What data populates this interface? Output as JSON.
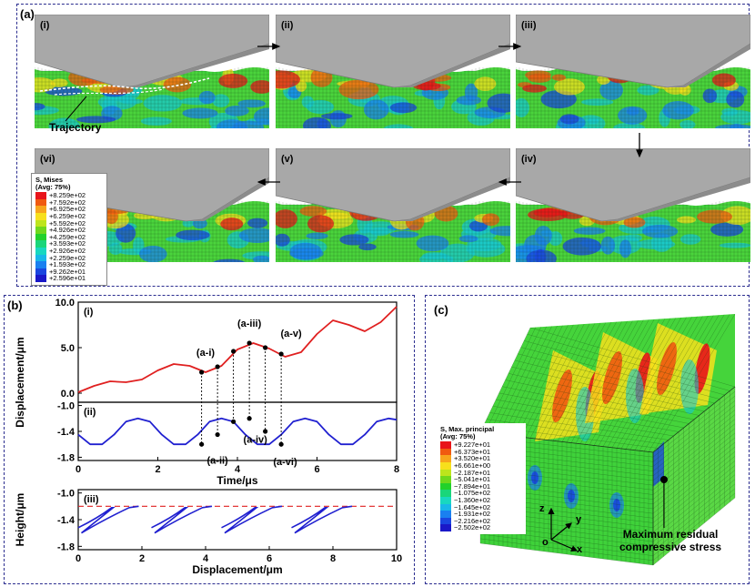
{
  "panel_a": {
    "label": "(a)",
    "frames": [
      {
        "id": "i",
        "label": "(i)"
      },
      {
        "id": "ii",
        "label": "(ii)"
      },
      {
        "id": "iii",
        "label": "(iii)"
      },
      {
        "id": "iv",
        "label": "(iv)"
      },
      {
        "id": "v",
        "label": "(v)"
      },
      {
        "id": "vi",
        "label": "(vi)"
      }
    ],
    "trajectory_label": "Trajectory",
    "legend": {
      "title1": "S, Mises",
      "title2": "(Avg: 75%)",
      "values": [
        "+8.259e+02",
        "+7.592e+02",
        "+6.925e+02",
        "+6.259e+02",
        "+5.592e+02",
        "+4.926e+02",
        "+4.259e+02",
        "+3.593e+02",
        "+2.926e+02",
        "+2.259e+02",
        "+1.593e+02",
        "+9.262e+01",
        "+2.596e+01"
      ],
      "colors": [
        "#e8141a",
        "#f05a10",
        "#f7a51c",
        "#f7e01c",
        "#bde51c",
        "#6fd81c",
        "#22d12a",
        "#1ad67a",
        "#18d8c0",
        "#18b8e8",
        "#1a80f0",
        "#1a46e0",
        "#1a18c8"
      ]
    }
  },
  "panel_b": {
    "label": "(b)",
    "chart_data": [
      {
        "id": "b-i",
        "type": "line",
        "label": "(i)",
        "ylabel": "Displacement/μm",
        "xlim": [
          0,
          8
        ],
        "ylim": [
          -1.0,
          10.0
        ],
        "yticks": [
          "0.0",
          "5.0",
          "10.0"
        ],
        "series": [
          {
            "color": "#e02020",
            "x": [
              0,
              0.4,
              0.8,
              1.2,
              1.6,
              2.0,
              2.4,
              2.8,
              3.2,
              3.6,
              4.0,
              4.4,
              4.8,
              5.2,
              5.6,
              6.0,
              6.4,
              6.8,
              7.2,
              7.6,
              8.0
            ],
            "y": [
              0.1,
              0.8,
              1.3,
              1.2,
              1.5,
              2.5,
              3.2,
              3.0,
              2.3,
              3.0,
              4.8,
              5.5,
              4.9,
              4.0,
              4.5,
              6.5,
              8.0,
              7.5,
              6.8,
              7.8,
              9.5
            ]
          }
        ],
        "annotations": [
          {
            "text": "(a-i)",
            "x": 3.2,
            "y": 2.3
          },
          {
            "text": "(a-iii)",
            "x": 4.3,
            "y": 5.5
          },
          {
            "text": "(a-v)",
            "x": 5.35,
            "y": 4.4
          }
        ],
        "points": [
          [
            3.1,
            2.3
          ],
          [
            3.5,
            2.9
          ],
          [
            3.9,
            4.6
          ],
          [
            4.3,
            5.5
          ],
          [
            4.7,
            5.0
          ],
          [
            5.1,
            4.3
          ]
        ]
      },
      {
        "id": "b-ii",
        "type": "line",
        "label": "(ii)",
        "xlabel": "Time/μs",
        "xlim": [
          0,
          8
        ],
        "ylim": [
          -1.85,
          -0.95
        ],
        "xticks": [
          "0",
          "2",
          "4",
          "6",
          "8"
        ],
        "yticks": [
          "-1.0",
          "-1.4",
          "-1.8"
        ],
        "series": [
          {
            "color": "#2020d0",
            "x": [
              0,
              0.3,
              0.6,
              0.9,
              1.2,
              1.5,
              1.8,
              2.1,
              2.4,
              2.7,
              3.0,
              3.3,
              3.6,
              3.9,
              4.2,
              4.5,
              4.8,
              5.1,
              5.4,
              5.7,
              6.0,
              6.3,
              6.6,
              6.9,
              7.2,
              7.5,
              7.8,
              8.0
            ],
            "y": [
              -1.45,
              -1.6,
              -1.6,
              -1.45,
              -1.25,
              -1.2,
              -1.25,
              -1.45,
              -1.6,
              -1.6,
              -1.45,
              -1.25,
              -1.2,
              -1.25,
              -1.45,
              -1.6,
              -1.6,
              -1.45,
              -1.25,
              -1.2,
              -1.25,
              -1.45,
              -1.6,
              -1.6,
              -1.45,
              -1.25,
              -1.2,
              -1.22
            ]
          }
        ],
        "annotations": [
          {
            "text": "(a-ii)",
            "x": 3.5,
            "y": -1.7
          },
          {
            "text": "(a-iv)",
            "x": 4.45,
            "y": -1.38
          },
          {
            "text": "(a-vi)",
            "x": 5.2,
            "y": -1.72
          }
        ],
        "points": [
          [
            3.1,
            -1.6
          ],
          [
            3.5,
            -1.45
          ],
          [
            3.9,
            -1.25
          ],
          [
            4.3,
            -1.2
          ],
          [
            4.7,
            -1.4
          ],
          [
            5.1,
            -1.6
          ]
        ]
      },
      {
        "id": "b-iii",
        "type": "line",
        "label": "(iii)",
        "xlabel": "Displacement/μm",
        "ylabel": "Height/μm",
        "xlim": [
          0,
          10
        ],
        "ylim": [
          -1.85,
          -0.95
        ],
        "xticks": [
          "0",
          "2",
          "4",
          "6",
          "8",
          "10"
        ],
        "yticks": [
          "-1.0",
          "-1.4",
          "-1.8"
        ],
        "dashed_level": -1.2,
        "series": [
          {
            "color": "#2020d0"
          }
        ]
      }
    ]
  },
  "panel_c": {
    "label": "(c)",
    "legend": {
      "title1": "S, Max. principal",
      "title2": "(Avg: 75%)",
      "values": [
        "+9.227e+01",
        "+6.373e+01",
        "+3.520e+01",
        "+6.661e+00",
        "−2.187e+01",
        "−5.041e+01",
        "−7.894e+01",
        "−1.075e+02",
        "−1.360e+02",
        "−1.645e+02",
        "−1.931e+02",
        "−2.216e+02",
        "−2.502e+02"
      ],
      "colors": [
        "#e8141a",
        "#f05a10",
        "#f7a51c",
        "#f7e01c",
        "#bde51c",
        "#6fd81c",
        "#22d12a",
        "#1ad67a",
        "#18d8c0",
        "#18b8e8",
        "#1a80f0",
        "#1a46e0",
        "#1a18c8"
      ]
    },
    "axes": {
      "z": "z",
      "y": "y",
      "x": "x",
      "o": "o"
    },
    "annotation_line1": "Maximum residual",
    "annotation_line2": "compressive stress"
  }
}
